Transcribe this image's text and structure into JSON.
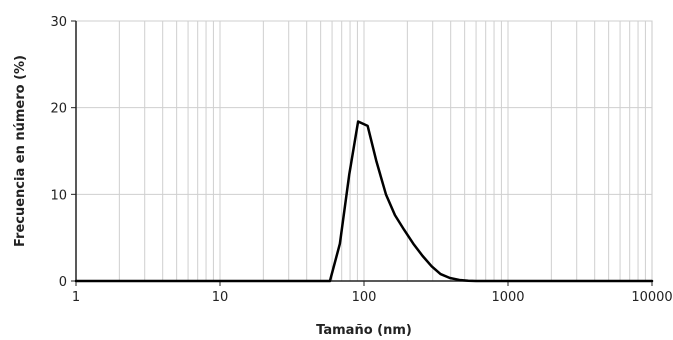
{
  "chart_data": {
    "type": "line",
    "xlabel": "Tamaño (nm)",
    "ylabel": "Frecuencia en número (%)",
    "xscale": "log",
    "xlim": [
      1,
      10000
    ],
    "ylim": [
      0,
      30
    ],
    "xticks": [
      {
        "value": 1,
        "label": "1"
      },
      {
        "value": 10,
        "label": "10"
      },
      {
        "value": 100,
        "label": "100"
      },
      {
        "value": 1000,
        "label": "1000"
      },
      {
        "value": 10000,
        "label": "10000"
      }
    ],
    "yticks": [
      {
        "value": 0,
        "label": "0"
      },
      {
        "value": 10,
        "label": "10"
      },
      {
        "value": 20,
        "label": "20"
      },
      {
        "value": 30,
        "label": "30"
      }
    ],
    "grid": true,
    "legend": false,
    "series": [
      {
        "color": "#000000",
        "x": [
          1,
          58,
          68,
          79,
          91,
          106,
          122,
          142,
          164,
          190,
          220,
          255,
          295,
          340,
          395,
          460,
          530,
          600,
          10000
        ],
        "y": [
          0,
          0,
          4.3,
          12.3,
          18.4,
          17.9,
          13.8,
          10.0,
          7.6,
          5.9,
          4.3,
          2.9,
          1.7,
          0.8,
          0.35,
          0.12,
          0.03,
          0,
          0
        ]
      }
    ]
  }
}
